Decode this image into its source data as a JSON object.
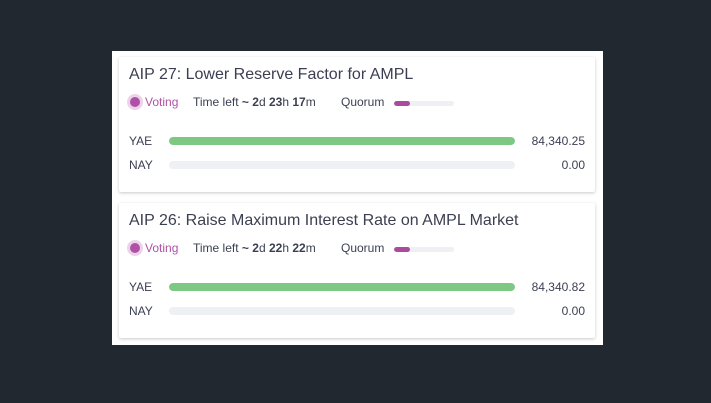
{
  "proposals": [
    {
      "title": "AIP 27: Lower Reserve Factor for AMPL",
      "status": "Voting",
      "time_left": {
        "label": "Time left",
        "approx": "~",
        "parts": [
          [
            "2",
            "d"
          ],
          [
            "23",
            "h"
          ],
          [
            "17",
            "m"
          ]
        ]
      },
      "quorum_label": "Quorum",
      "quorum_progress": 27,
      "votes": [
        {
          "label": "YAE",
          "value": 84340.25,
          "value_label": "84,340.25"
        },
        {
          "label": "NAY",
          "value": 0,
          "value_label": "0.00"
        }
      ]
    },
    {
      "title": "AIP 26: Raise Maximum Interest Rate on AMPL Market",
      "status": "Voting",
      "time_left": {
        "label": "Time left",
        "approx": "~",
        "parts": [
          [
            "2",
            "d"
          ],
          [
            "22",
            "h"
          ],
          [
            "22",
            "m"
          ]
        ]
      },
      "quorum_label": "Quorum",
      "quorum_progress": 27,
      "votes": [
        {
          "label": "YAE",
          "value": 84340.82,
          "value_label": "84,340.82"
        },
        {
          "label": "NAY",
          "value": 0,
          "value_label": "0.00"
        }
      ]
    }
  ]
}
